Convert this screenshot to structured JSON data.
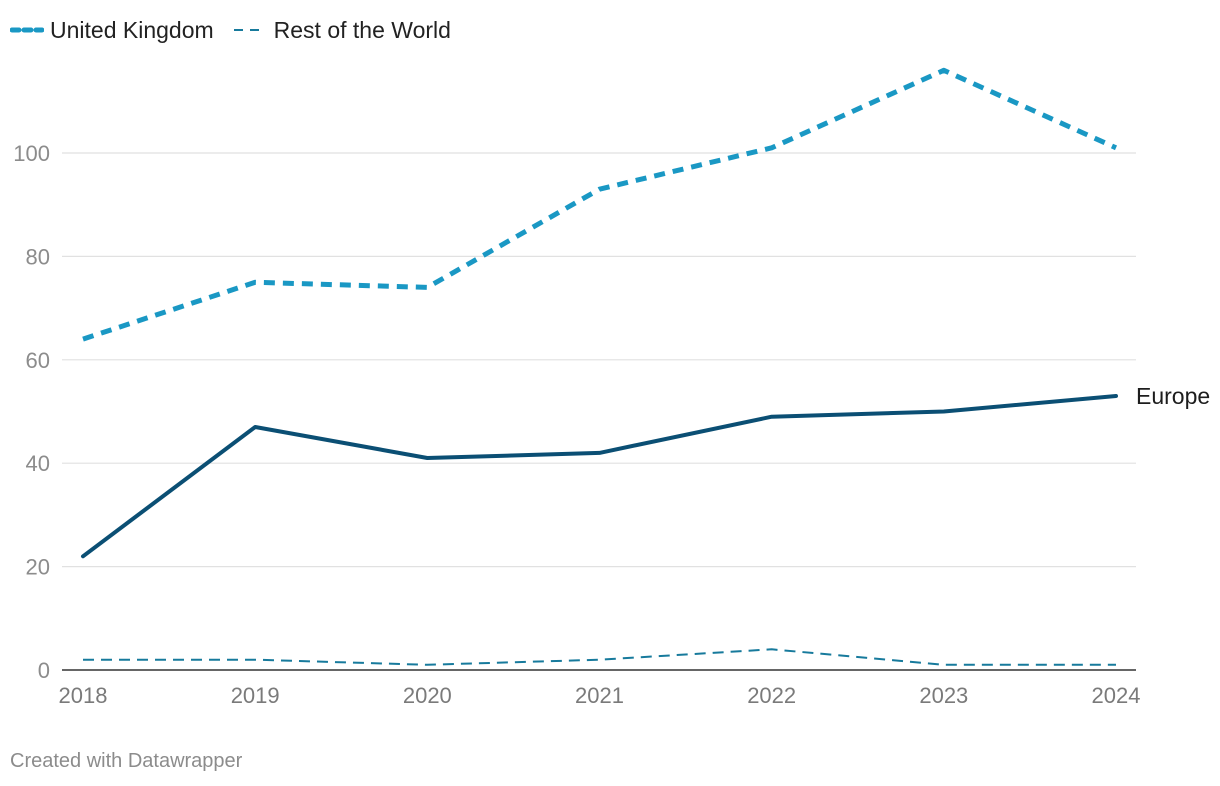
{
  "chart_data": {
    "type": "line",
    "x": [
      "2018",
      "2019",
      "2020",
      "2021",
      "2022",
      "2023",
      "2024"
    ],
    "ylim": [
      0,
      120
    ],
    "y_ticks": [
      0,
      20,
      40,
      60,
      80,
      100
    ],
    "grid": true,
    "legend_placement": "top-left",
    "series": [
      {
        "name": "United Kingdom",
        "values": [
          64,
          75,
          74,
          93,
          101,
          116,
          101
        ],
        "color": "#1a98c4",
        "style": "dotted-thick"
      },
      {
        "name": "Rest of the World",
        "values": [
          2,
          2,
          1,
          2,
          4,
          1,
          1
        ],
        "color": "#177a9c",
        "style": "dashed-thin"
      },
      {
        "name": "Europe",
        "values": [
          22,
          47,
          41,
          42,
          49,
          50,
          53
        ],
        "color": "#0b4f74",
        "style": "solid",
        "inline_label": true
      }
    ]
  },
  "footer": {
    "credit": "Created with Datawrapper"
  }
}
